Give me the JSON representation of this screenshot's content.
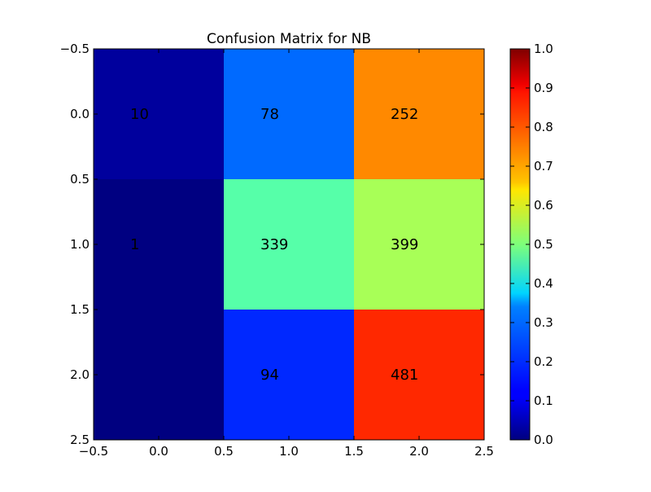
{
  "chart_data": {
    "type": "heatmap",
    "title": "Confusion Matrix for NB",
    "xlabel": "",
    "ylabel": "",
    "xlim": [
      -0.5,
      2.5
    ],
    "ylim": [
      2.5,
      -0.5
    ],
    "x_ticks": [
      "−0.5",
      "0.0",
      "0.5",
      "1.0",
      "1.5",
      "2.0",
      "2.5"
    ],
    "y_ticks": [
      "−0.5",
      "0.0",
      "0.5",
      "1.0",
      "1.5",
      "2.0",
      "2.5"
    ],
    "colormap": "jet",
    "colorbar": {
      "range": [
        0.0,
        1.0
      ],
      "ticks": [
        "0.0",
        "0.1",
        "0.2",
        "0.3",
        "0.4",
        "0.5",
        "0.6",
        "0.7",
        "0.8",
        "0.9",
        "1.0"
      ]
    },
    "matrix": [
      [
        10,
        78,
        252
      ],
      [
        1,
        339,
        399
      ],
      [
        0,
        94,
        481
      ]
    ],
    "normalized": [
      [
        0.029,
        0.229,
        0.741
      ],
      [
        0.001,
        0.459,
        0.54
      ],
      [
        0.0,
        0.164,
        0.836
      ]
    ],
    "cell_labels": [
      [
        "10",
        "78",
        "252"
      ],
      [
        "1",
        "339",
        "399"
      ],
      [
        "",
        "94",
        "481"
      ]
    ]
  }
}
